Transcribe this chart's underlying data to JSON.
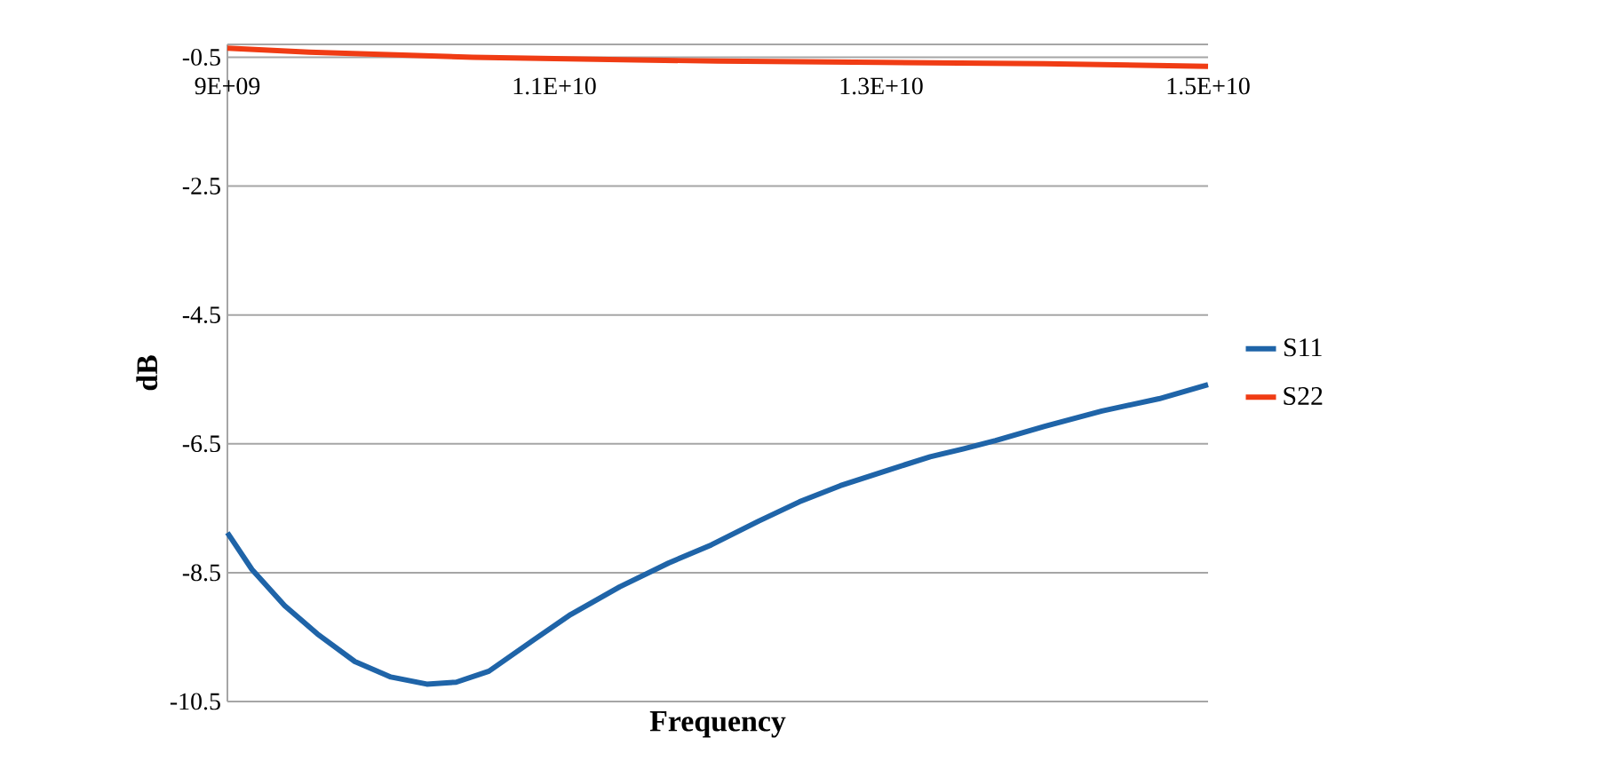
{
  "chart_data": {
    "type": "line",
    "xlabel": "Frequency",
    "ylabel": "dB",
    "xlim": [
      9000000000,
      15000000000
    ],
    "xticks": [
      {
        "value": 9000000000,
        "label": "9E+09"
      },
      {
        "value": 11000000000,
        "label": "1.1E+10"
      },
      {
        "value": 13000000000,
        "label": "1.3E+10"
      },
      {
        "value": 15000000000,
        "label": "1.5E+10"
      }
    ],
    "ylim": [
      -10.5,
      -0.3
    ],
    "yticks": [
      -10.5,
      -8.5,
      -6.5,
      -4.5,
      -2.5,
      -0.5
    ],
    "grid": "y",
    "legend": "right",
    "marker": "none",
    "line_style": "solid",
    "series": [
      {
        "name": "S11",
        "color": "#1f64a8",
        "x": [
          9000000000,
          9150000000,
          9350000000,
          9550000000,
          9780000000,
          10000000000,
          10220000000,
          10400000000,
          10600000000,
          10870000000,
          11100000000,
          11400000000,
          11700000000,
          11960000000,
          12250000000,
          12500000000,
          12750000000,
          13040000000,
          13300000000,
          13500000000,
          13700000000,
          14000000000,
          14350000000,
          14700000000,
          15000000000
        ],
        "values": [
          -7.88,
          -8.45,
          -9.01,
          -9.45,
          -9.88,
          -10.12,
          -10.23,
          -10.2,
          -10.03,
          -9.55,
          -9.15,
          -8.72,
          -8.35,
          -8.07,
          -7.7,
          -7.4,
          -7.15,
          -6.91,
          -6.7,
          -6.58,
          -6.45,
          -6.23,
          -5.99,
          -5.8,
          -5.58
        ]
      },
      {
        "name": "S22",
        "color": "#f03c14",
        "x": [
          9000000000,
          9500000000,
          10000000000,
          10500000000,
          11000000000,
          11500000000,
          12000000000,
          12500000000,
          13000000000,
          13500000000,
          14000000000,
          14500000000,
          15000000000
        ],
        "values": [
          -0.36,
          -0.42,
          -0.46,
          -0.5,
          -0.52,
          -0.54,
          -0.56,
          -0.57,
          -0.58,
          -0.59,
          -0.6,
          -0.62,
          -0.64
        ]
      }
    ]
  }
}
